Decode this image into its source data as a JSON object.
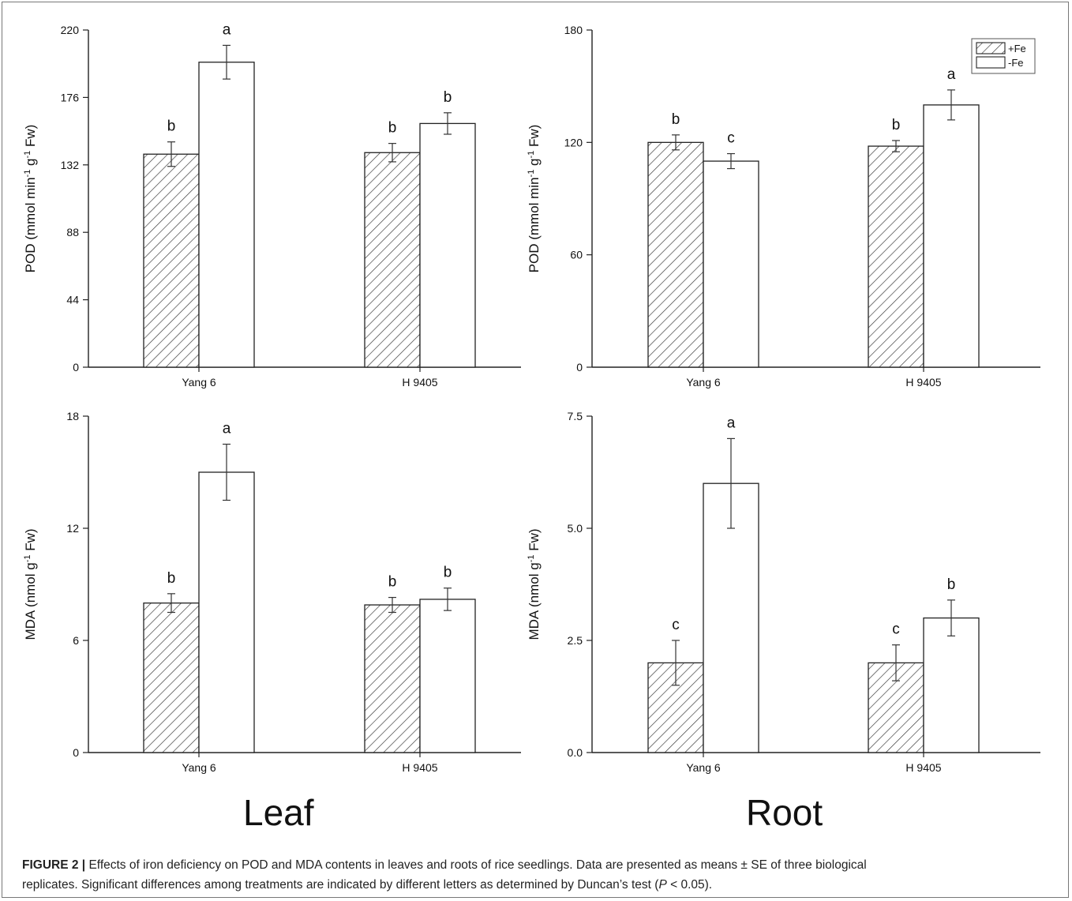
{
  "figure": {
    "column_labels": [
      "Leaf",
      "Root"
    ],
    "caption": {
      "label": "FIGURE 2 |",
      "line1": "Effects of iron deficiency on POD and MDA contents in leaves and roots of rice seedlings. Data are presented as means ± SE of three biological",
      "line2a": "replicates. Significant differences among treatments are indicated by different letters as determined by Duncan’s test (",
      "line2p": "P",
      "line2b": " < 0.05)."
    }
  },
  "chart_data": [
    {
      "type": "bar",
      "panel": "leaf-pod",
      "categories": [
        "Yang 6",
        "H 9405"
      ],
      "ylabel": "POD (mmol min-1 g-1 Fw)",
      "ylim": [
        0,
        220
      ],
      "yticks": [
        "0",
        "44",
        "88",
        "132",
        "176",
        "220"
      ],
      "series": [
        {
          "name": "+Fe",
          "values": [
            139,
            140
          ],
          "errors": [
            8,
            6
          ],
          "letters": [
            "b",
            "b"
          ]
        },
        {
          "name": "-Fe",
          "values": [
            199,
            159
          ],
          "errors": [
            11,
            7
          ],
          "letters": [
            "a",
            "b"
          ]
        }
      ]
    },
    {
      "type": "bar",
      "panel": "root-pod",
      "categories": [
        "Yang 6",
        "H 9405"
      ],
      "ylabel": "POD (mmol min-1 g-1 Fw)",
      "ylim": [
        0,
        180
      ],
      "yticks": [
        "0",
        "60",
        "120",
        "180"
      ],
      "legend": {
        "entries": [
          "+Fe",
          "-Fe"
        ],
        "placement": "top-right"
      },
      "series": [
        {
          "name": "+Fe",
          "values": [
            120,
            118
          ],
          "errors": [
            4,
            3
          ],
          "letters": [
            "b",
            "b"
          ]
        },
        {
          "name": "-Fe",
          "values": [
            110,
            140
          ],
          "errors": [
            4,
            8
          ],
          "letters": [
            "c",
            "a"
          ]
        }
      ]
    },
    {
      "type": "bar",
      "panel": "leaf-mda",
      "categories": [
        "Yang 6",
        "H 9405"
      ],
      "ylabel": "MDA (nmol g-1 Fw)",
      "ylim": [
        0,
        18
      ],
      "yticks": [
        "0",
        "6",
        "12",
        "18"
      ],
      "series": [
        {
          "name": "+Fe",
          "values": [
            8.0,
            7.9
          ],
          "errors": [
            0.5,
            0.4
          ],
          "letters": [
            "b",
            "b"
          ]
        },
        {
          "name": "-Fe",
          "values": [
            15.0,
            8.2
          ],
          "errors": [
            1.5,
            0.6
          ],
          "letters": [
            "a",
            "b"
          ]
        }
      ]
    },
    {
      "type": "bar",
      "panel": "root-mda",
      "categories": [
        "Yang 6",
        "H 9405"
      ],
      "ylabel": "MDA (nmol g-1 Fw)",
      "ylim": [
        0,
        7.5
      ],
      "yticks": [
        "0.0",
        "2.5",
        "5.0",
        "7.5"
      ],
      "series": [
        {
          "name": "+Fe",
          "values": [
            2.0,
            2.0
          ],
          "errors": [
            0.5,
            0.4
          ],
          "letters": [
            "c",
            "c"
          ]
        },
        {
          "name": "-Fe",
          "values": [
            6.0,
            3.0
          ],
          "errors": [
            1.0,
            0.4
          ],
          "letters": [
            "a",
            "b"
          ]
        }
      ]
    }
  ]
}
